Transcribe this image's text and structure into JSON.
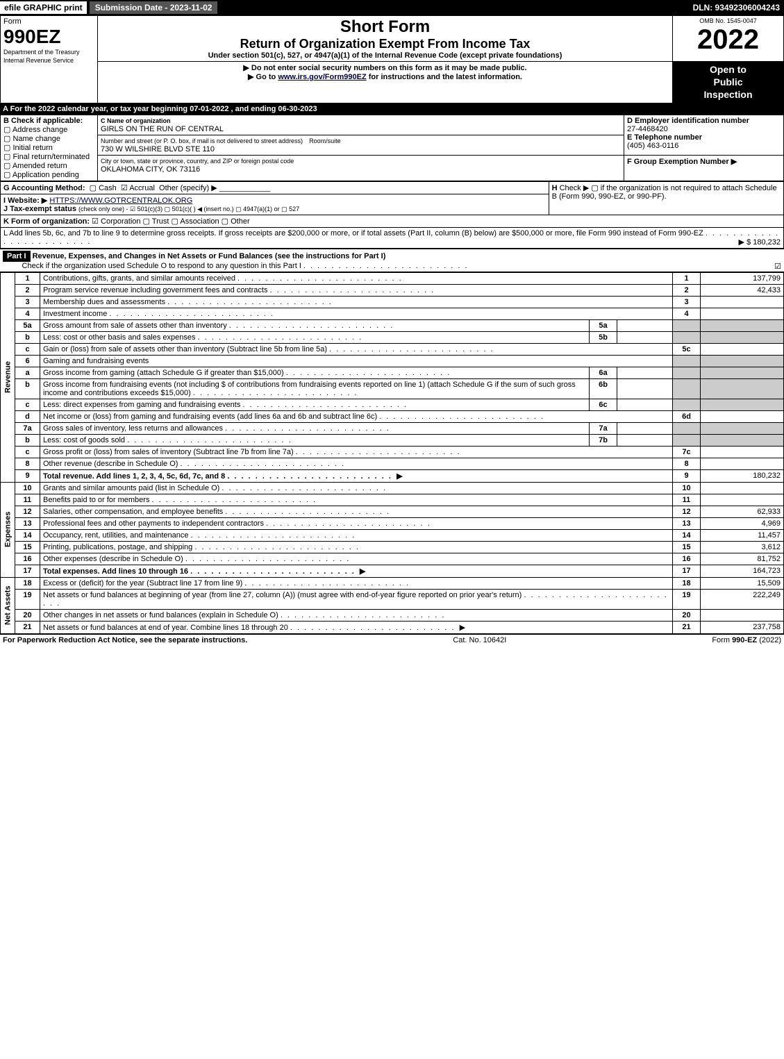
{
  "topbar": {
    "efile": "efile GRAPHIC print",
    "submission": "Submission Date - 2023-11-02",
    "dln": "DLN: 93492306004243"
  },
  "header": {
    "form_word": "Form",
    "form_number": "990EZ",
    "dept": "Department of the Treasury",
    "irs": "Internal Revenue Service",
    "short_form": "Short Form",
    "title": "Return of Organization Exempt From Income Tax",
    "under": "Under section 501(c), 527, or 4947(a)(1) of the Internal Revenue Code (except private foundations)",
    "ssn": "▶ Do not enter social security numbers on this form as it may be made public.",
    "goto": "▶ Go to www.irs.gov/Form990EZ for instructions and the latest information.",
    "omb": "OMB No. 1545-0047",
    "year": "2022",
    "inspect1": "Open to",
    "inspect2": "Public",
    "inspect3": "Inspection"
  },
  "secA": "A  For the 2022 calendar year, or tax year beginning 07-01-2022 , and ending 06-30-2023",
  "boxB": {
    "label": "B  Check if applicable:",
    "items": [
      "Address change",
      "Name change",
      "Initial return",
      "Final return/terminated",
      "Amended return",
      "Application pending"
    ]
  },
  "boxC": {
    "c_label": "C Name of organization",
    "name": "GIRLS ON THE RUN OF CENTRAL",
    "addr_label": "Number and street (or P. O. box, if mail is not delivered to street address)",
    "room": "Room/suite",
    "addr": "730 W WILSHIRE BLVD STE 110",
    "city_label": "City or town, state or province, country, and ZIP or foreign postal code",
    "city": "OKLAHOMA CITY, OK  73116"
  },
  "boxD": {
    "label": "D Employer identification number",
    "val": "27-4468420"
  },
  "boxE": {
    "label": "E Telephone number",
    "val": "(405) 463-0116"
  },
  "boxF": {
    "label": "F Group Exemption Number  ▶",
    "val": ""
  },
  "lineG": {
    "label": "G Accounting Method:",
    "cash": "Cash",
    "accrual": "Accrual",
    "other": "Other (specify) ▶"
  },
  "lineH": {
    "label": "H",
    "text": "Check ▶  ▢  if the organization is not required to attach Schedule B (Form 990, 990-EZ, or 990-PF)."
  },
  "lineI": {
    "label": "I Website: ▶",
    "val": "HTTPS://WWW.GOTRCENTRALOK.ORG"
  },
  "lineJ": {
    "label": "J Tax-exempt status",
    "text": "(check only one) - ☑ 501(c)(3)  ▢ 501(c)(  ) ◀ (insert no.)  ▢ 4947(a)(1) or  ▢ 527"
  },
  "lineK": {
    "label": "K Form of organization:",
    "text": "☑ Corporation   ▢ Trust   ▢ Association   ▢ Other"
  },
  "lineL": {
    "text": "L Add lines 5b, 6c, and 7b to line 9 to determine gross receipts. If gross receipts are $200,000 or more, or if total assets (Part II, column (B) below) are $500,000 or more, file Form 990 instead of Form 990-EZ",
    "amt": "▶ $ 180,232"
  },
  "part1": {
    "title": "Revenue, Expenses, and Changes in Net Assets or Fund Balances (see the instructions for Part I)",
    "check": "Check if the organization used Schedule O to respond to any question in this Part I",
    "checked": true
  },
  "sections": {
    "revenue": "Revenue",
    "expenses": "Expenses",
    "netassets": "Net Assets"
  },
  "lines": [
    {
      "n": "1",
      "d": "Contributions, gifts, grants, and similar amounts received",
      "ln": "1",
      "amt": "137,799"
    },
    {
      "n": "2",
      "d": "Program service revenue including government fees and contracts",
      "ln": "2",
      "amt": "42,433"
    },
    {
      "n": "3",
      "d": "Membership dues and assessments",
      "ln": "3",
      "amt": ""
    },
    {
      "n": "4",
      "d": "Investment income",
      "ln": "4",
      "amt": ""
    },
    {
      "n": "5a",
      "d": "Gross amount from sale of assets other than inventory",
      "mid": "5a",
      "midamt": "",
      "shadeRight": true
    },
    {
      "n": "b",
      "d": "Less: cost or other basis and sales expenses",
      "mid": "5b",
      "midamt": "",
      "shadeRight": true
    },
    {
      "n": "c",
      "d": "Gain or (loss) from sale of assets other than inventory (Subtract line 5b from line 5a)",
      "ln": "5c",
      "amt": ""
    },
    {
      "n": "6",
      "d": "Gaming and fundraising events",
      "shadeRight": true,
      "noLine": true
    },
    {
      "n": "a",
      "d": "Gross income from gaming (attach Schedule G if greater than $15,000)",
      "mid": "6a",
      "midamt": "",
      "shadeRight": true
    },
    {
      "n": "b",
      "d": "Gross income from fundraising events (not including $                           of contributions from fundraising events reported on line 1) (attach Schedule G if the sum of such gross income and contributions exceeds $15,000)",
      "mid": "6b",
      "midamt": "",
      "shadeRight": true
    },
    {
      "n": "c",
      "d": "Less: direct expenses from gaming and fundraising events",
      "mid": "6c",
      "midamt": "",
      "shadeRight": true
    },
    {
      "n": "d",
      "d": "Net income or (loss) from gaming and fundraising events (add lines 6a and 6b and subtract line 6c)",
      "ln": "6d",
      "amt": ""
    },
    {
      "n": "7a",
      "d": "Gross sales of inventory, less returns and allowances",
      "mid": "7a",
      "midamt": "",
      "shadeRight": true
    },
    {
      "n": "b",
      "d": "Less: cost of goods sold",
      "mid": "7b",
      "midamt": "",
      "shadeRight": true
    },
    {
      "n": "c",
      "d": "Gross profit or (loss) from sales of inventory (Subtract line 7b from line 7a)",
      "ln": "7c",
      "amt": ""
    },
    {
      "n": "8",
      "d": "Other revenue (describe in Schedule O)",
      "ln": "8",
      "amt": ""
    },
    {
      "n": "9",
      "d": "Total revenue. Add lines 1, 2, 3, 4, 5c, 6d, 7c, and 8",
      "ln": "9",
      "amt": "180,232",
      "bold": true,
      "arrow": true
    }
  ],
  "exp": [
    {
      "n": "10",
      "d": "Grants and similar amounts paid (list in Schedule O)",
      "ln": "10",
      "amt": ""
    },
    {
      "n": "11",
      "d": "Benefits paid to or for members",
      "ln": "11",
      "amt": ""
    },
    {
      "n": "12",
      "d": "Salaries, other compensation, and employee benefits",
      "ln": "12",
      "amt": "62,933"
    },
    {
      "n": "13",
      "d": "Professional fees and other payments to independent contractors",
      "ln": "13",
      "amt": "4,969"
    },
    {
      "n": "14",
      "d": "Occupancy, rent, utilities, and maintenance",
      "ln": "14",
      "amt": "11,457"
    },
    {
      "n": "15",
      "d": "Printing, publications, postage, and shipping",
      "ln": "15",
      "amt": "3,612"
    },
    {
      "n": "16",
      "d": "Other expenses (describe in Schedule O)",
      "ln": "16",
      "amt": "81,752"
    },
    {
      "n": "17",
      "d": "Total expenses. Add lines 10 through 16",
      "ln": "17",
      "amt": "164,723",
      "bold": true,
      "arrow": true
    }
  ],
  "net": [
    {
      "n": "18",
      "d": "Excess or (deficit) for the year (Subtract line 17 from line 9)",
      "ln": "18",
      "amt": "15,509"
    },
    {
      "n": "19",
      "d": "Net assets or fund balances at beginning of year (from line 27, column (A)) (must agree with end-of-year figure reported on prior year's return)",
      "ln": "19",
      "amt": "222,249"
    },
    {
      "n": "20",
      "d": "Other changes in net assets or fund balances (explain in Schedule O)",
      "ln": "20",
      "amt": ""
    },
    {
      "n": "21",
      "d": "Net assets or fund balances at end of year. Combine lines 18 through 20",
      "ln": "21",
      "amt": "237,758",
      "arrow": true
    }
  ],
  "footer": {
    "left": "For Paperwork Reduction Act Notice, see the separate instructions.",
    "mid": "Cat. No. 10642I",
    "right": "Form 990-EZ (2022)"
  }
}
